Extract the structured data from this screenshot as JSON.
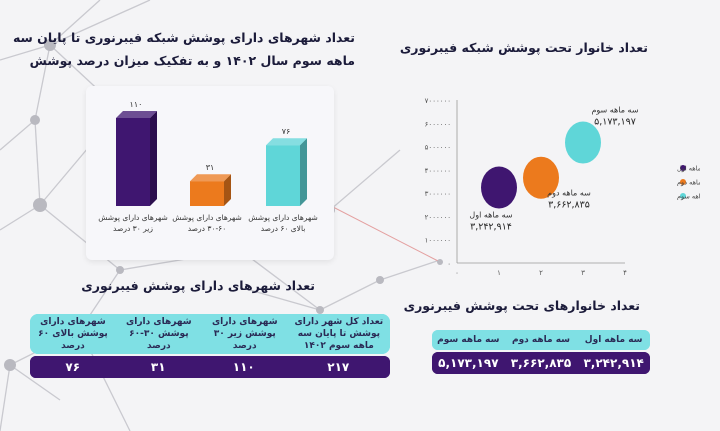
{
  "left_title": {
    "line1": "تعداد شهرهای دارای پوشش شبکه فیبرنوری تا پایان سه",
    "line2": "ماهه سوم سال ۱۴۰۲ و به تفکیک میزان درصد پوشش"
  },
  "right_title": "تعداد خانوار تحت پوشش شبکه فیبرنوری",
  "cities_table": {
    "title": "تعداد شهرهای دارای پوشش فیبرنوری",
    "headers": [
      "تعداد کل شهر دارای پوشش تا پایان سه ماهه سوم ۱۴۰۲",
      "شهرهای دارای پوشش زیر ۳۰ درصد",
      "شهرهای دارای پوشش ۳۰-۶۰ درصد",
      "شهرهای دارای پوشش بالای ۶۰ درصد"
    ],
    "values": [
      "۲۱۷",
      "۱۱۰",
      "۳۱",
      "۷۶"
    ]
  },
  "households_table": {
    "title": "تعداد خانوارهای تحت پوشش فیبرنوری",
    "headers": [
      "سه ماهه اول",
      "سه ماهه دوم",
      "سه ماهه سوم"
    ],
    "values": [
      "۳,۲۴۲,۹۱۴",
      "۳,۶۶۲,۸۳۵",
      "۵,۱۷۳,۱۹۷"
    ]
  },
  "chart_data": [
    {
      "type": "bar",
      "categories": [
        "شهرهای دارای پوشش زیر ۳۰ درصد",
        "شهرهای دارای پوشش ۳۰-۶۰ درصد",
        "شهرهای دارای پوشش بالای ۶۰ درصد"
      ],
      "values": [
        110,
        31,
        76
      ],
      "value_labels": [
        "۱۱۰",
        "۳۱",
        "۷۶"
      ],
      "colors": [
        "#3f1670",
        "#ec7a1d",
        "#5fd6d8"
      ],
      "ylim": [
        0,
        120
      ]
    },
    {
      "type": "scatter",
      "series": [
        {
          "name": "سه ماهه اول",
          "x": 1,
          "y": 3242914,
          "label": "۳,۲۴۲,۹۱۴",
          "color": "#3f1670"
        },
        {
          "name": "سه ماهه دوم",
          "x": 2,
          "y": 3662835,
          "label": "۳,۶۶۲,۸۳۵",
          "color": "#ec7a1d"
        },
        {
          "name": "سه ماهه سوم",
          "x": 3,
          "y": 5173197,
          "label": "۵,۱۷۳,۱۹۷",
          "color": "#5fd6d8"
        }
      ],
      "xlim": [
        0,
        4
      ],
      "ylim": [
        0,
        7000000
      ],
      "x_ticks": [
        "۰",
        "۱",
        "۲",
        "۳",
        "۴"
      ],
      "y_ticks": [
        "۰",
        "۱۰۰۰۰۰۰",
        "۲۰۰۰۰۰۰",
        "۳۰۰۰۰۰۰",
        "۴۰۰۰۰۰۰",
        "۵۰۰۰۰۰۰",
        "۶۰۰۰۰۰۰",
        "۷۰۰۰۰۰۰"
      ],
      "legend": "right",
      "grid": false
    }
  ],
  "colors": {
    "purple": "#3f1670",
    "orange": "#ec7a1d",
    "cyan": "#5fd6d8",
    "header": "#7fe0e4"
  }
}
